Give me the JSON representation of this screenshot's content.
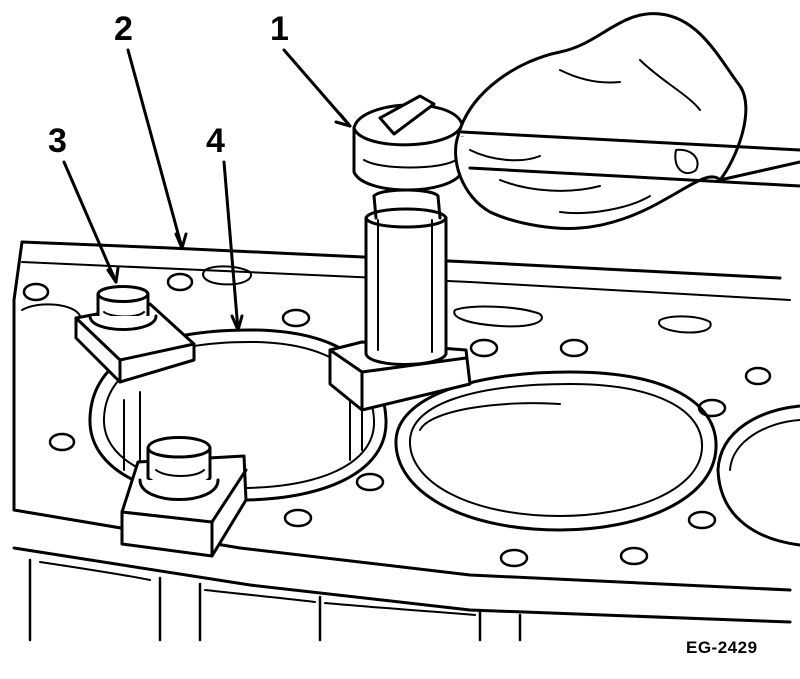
{
  "callouts": {
    "one": "1",
    "two": "2",
    "three": "3",
    "four": "4"
  },
  "figure_code": "EG-2429",
  "icons": [
    "hand-icon",
    "socket-tool-icon",
    "bolt-icon",
    "clamp-plate-icon",
    "cylinder-liner-icon"
  ],
  "colors": {
    "ink": "#000000",
    "paper": "#ffffff"
  }
}
